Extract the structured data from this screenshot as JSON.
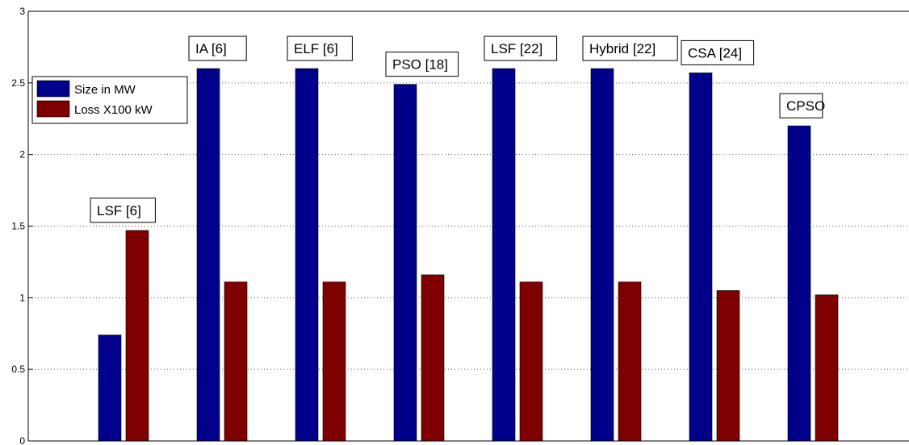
{
  "chart_data": {
    "type": "bar",
    "title": "",
    "xlabel": "",
    "ylabel": "",
    "ylim": [
      0,
      3
    ],
    "yticks": [
      "0",
      "0.5",
      "1",
      "1.5",
      "2",
      "2.5",
      "3"
    ],
    "grid": true,
    "legend_position": "top-left",
    "categories": [
      "LSF [6]",
      "IA [6]",
      "ELF [6]",
      "PSO [18]",
      "LSF [22]",
      "Hybrid [22]",
      "CSA [24]",
      "CPSO"
    ],
    "series": [
      {
        "name": "Size in MW",
        "color": "#00008b",
        "values": [
          0.74,
          2.6,
          2.6,
          2.49,
          2.6,
          2.6,
          2.57,
          2.2
        ]
      },
      {
        "name": "Loss X100 kW",
        "color": "#7f0000",
        "values": [
          1.47,
          1.11,
          1.11,
          1.16,
          1.11,
          1.11,
          1.05,
          1.02
        ]
      }
    ]
  }
}
